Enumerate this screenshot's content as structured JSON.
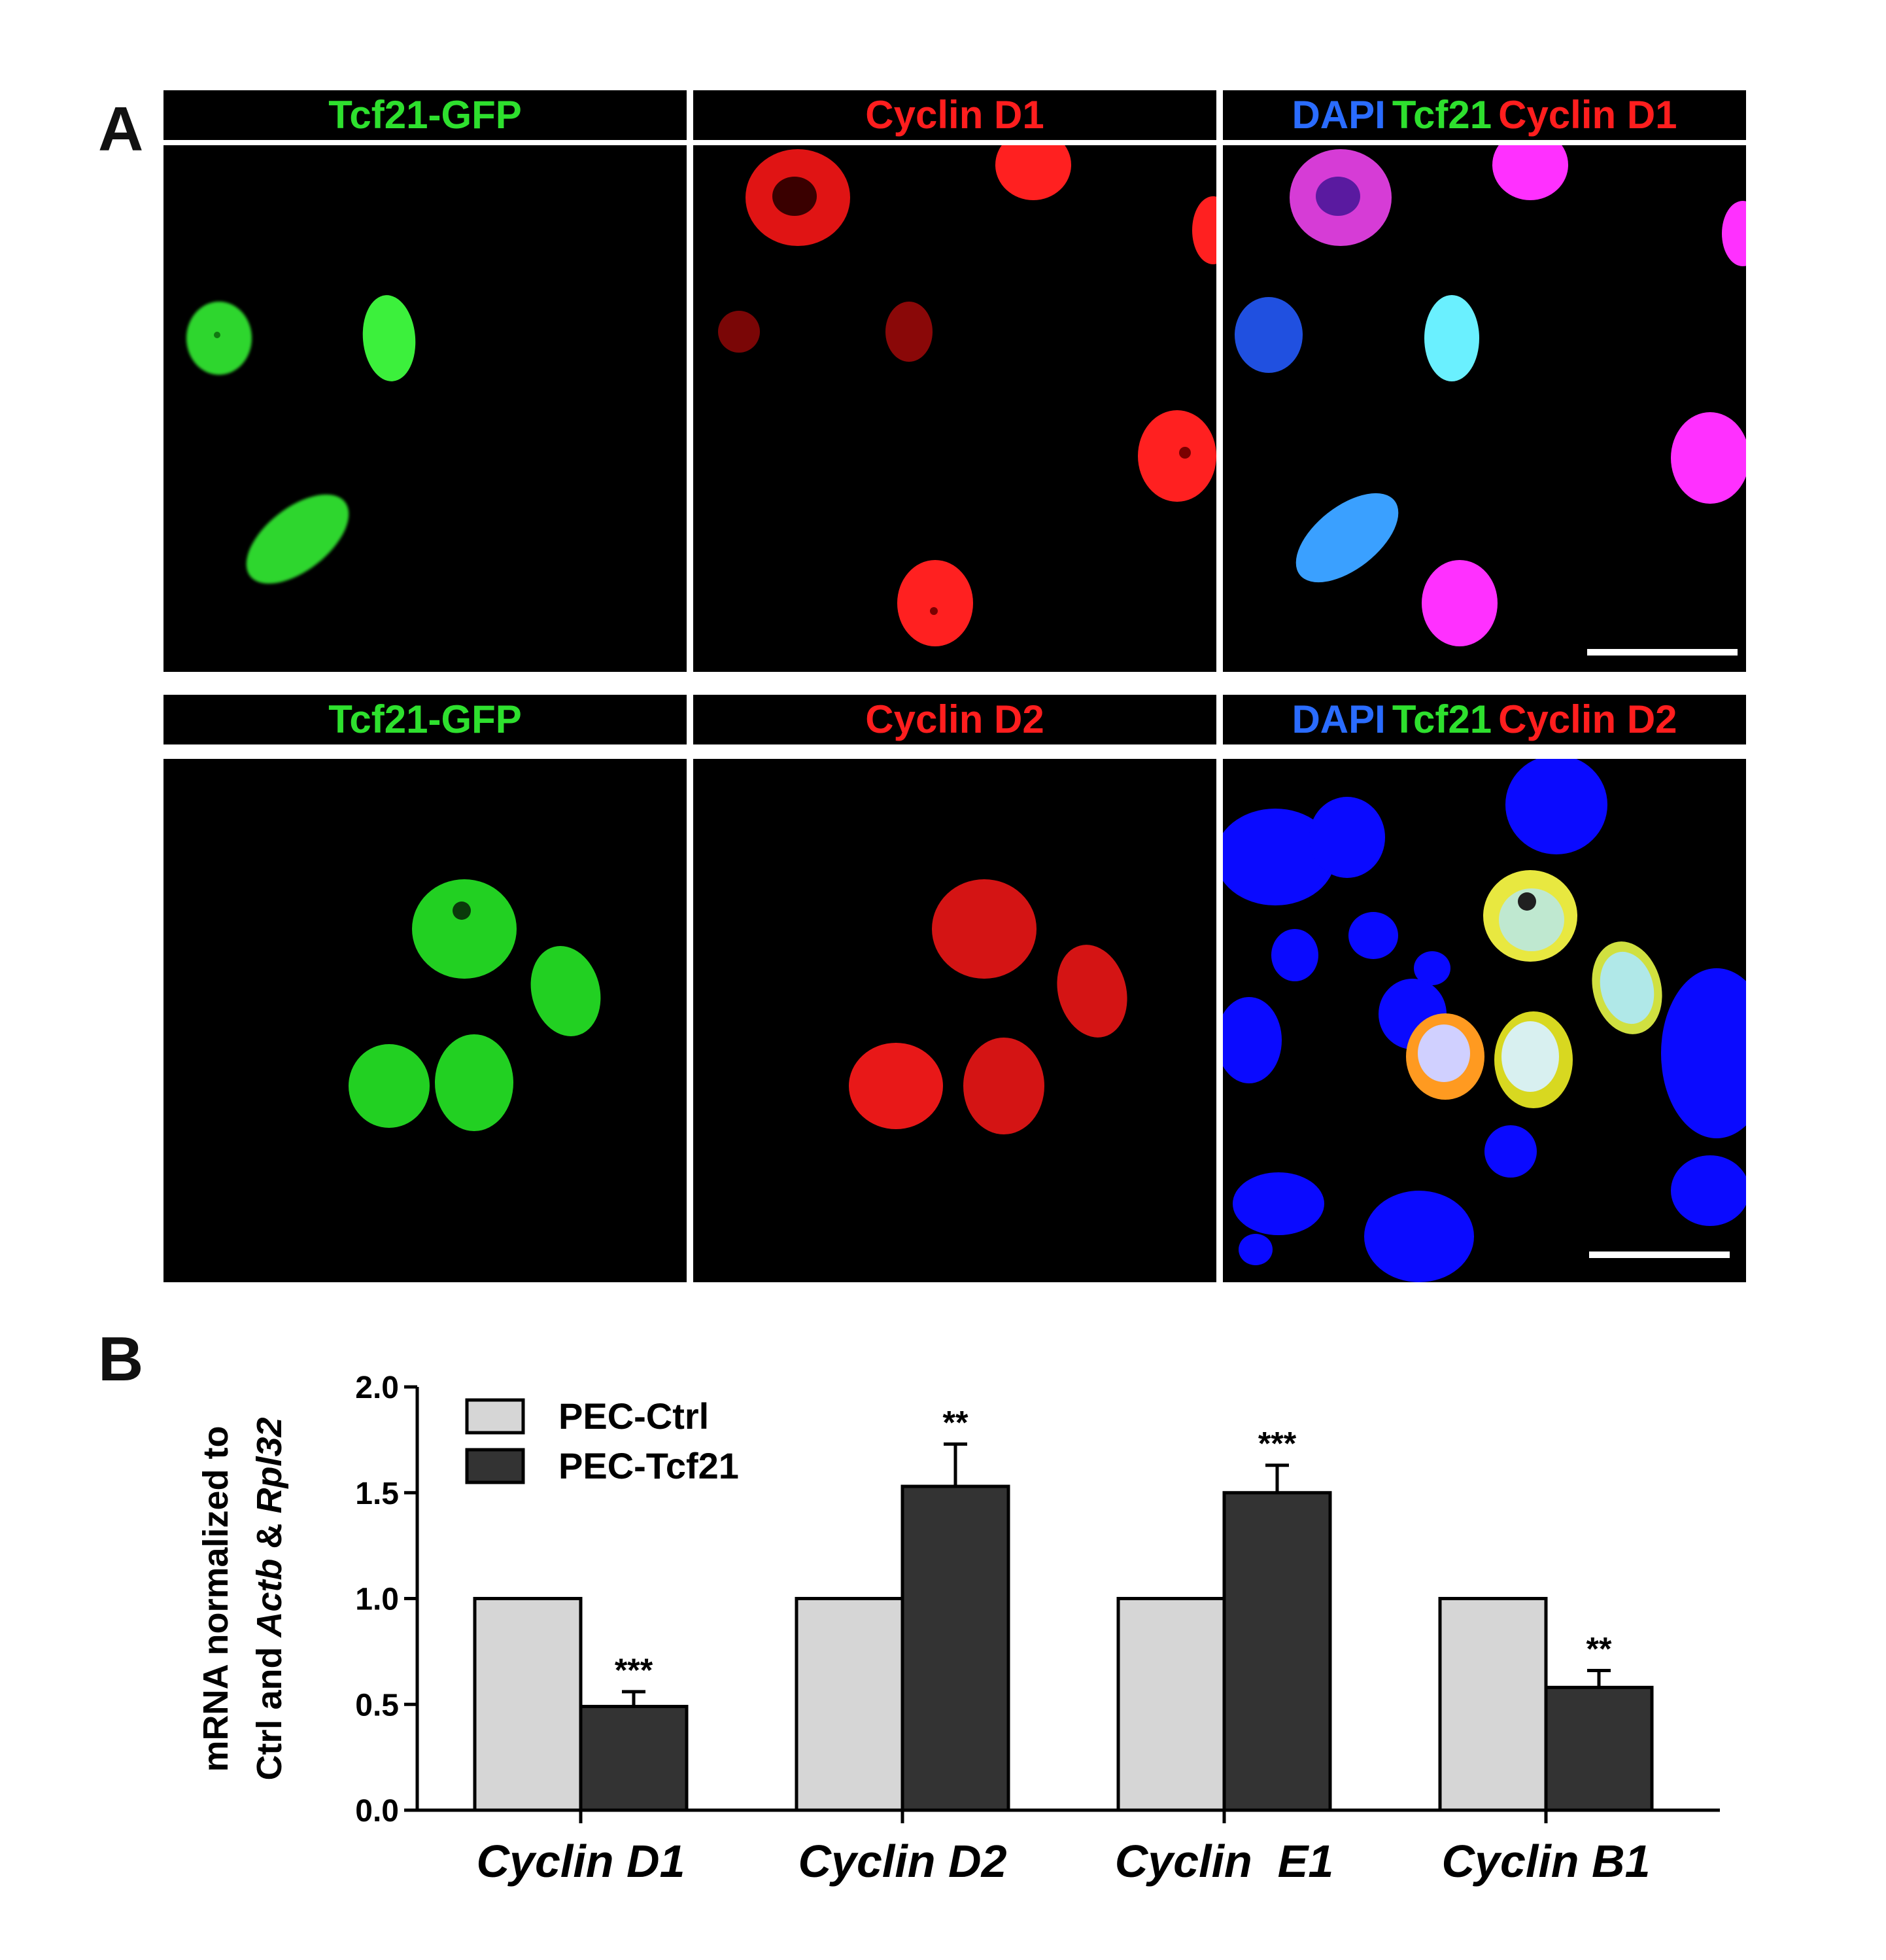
{
  "panels": {
    "a_label": "A",
    "b_label": "B"
  },
  "microscopy": {
    "row1": [
      {
        "parts": [
          {
            "text": "Tcf21-GFP",
            "color": "#2ee02e"
          }
        ]
      },
      {
        "parts": [
          {
            "text": "Cyclin D1",
            "color": "#ff1e1e"
          }
        ]
      },
      {
        "parts": [
          {
            "text": "DAPI",
            "color": "#2a6cff"
          },
          {
            "text": "Tcf21",
            "color": "#2ee02e"
          },
          {
            "text": "Cyclin D1",
            "color": "#ff1e1e"
          }
        ]
      }
    ],
    "row2": [
      {
        "parts": [
          {
            "text": "Tcf21-GFP",
            "color": "#2ee02e"
          }
        ]
      },
      {
        "parts": [
          {
            "text": "Cyclin D2",
            "color": "#ff1e1e"
          }
        ]
      },
      {
        "parts": [
          {
            "text": "DAPI",
            "color": "#2a6cff"
          },
          {
            "text": "Tcf21",
            "color": "#2ee02e"
          },
          {
            "text": "Cyclin D2",
            "color": "#ff1e1e"
          }
        ]
      }
    ]
  },
  "chart_data": {
    "type": "bar",
    "categories": [
      "Cyclin D1",
      "Cyclin D2",
      "Cyclin  E1",
      "Cyclin B1"
    ],
    "series": [
      {
        "name": "PEC-Ctrl",
        "color": "#d6d6d6",
        "values": [
          1.0,
          1.0,
          1.0,
          1.0
        ],
        "errors": [
          0,
          0,
          0,
          0
        ]
      },
      {
        "name": "PEC-Tcf21",
        "color": "#333333",
        "values": [
          0.49,
          1.53,
          1.5,
          0.58
        ],
        "errors": [
          0.07,
          0.2,
          0.13,
          0.08
        ]
      }
    ],
    "significance": [
      "***",
      "**",
      "***",
      "**"
    ],
    "ylabel_line1": "mRNA normalized to",
    "ylabel_line2_parts": [
      {
        "text": "Ctrl and ",
        "italic": false
      },
      {
        "text": "Actb",
        "italic": true
      },
      {
        "text": " & ",
        "italic": false
      },
      {
        "text": "Rpl32",
        "italic": true
      }
    ],
    "ylim": [
      0,
      2.0
    ],
    "yticks": [
      "0.0",
      "0.5",
      "1.0",
      "1.5",
      "2.0"
    ],
    "legend_position": "top-left"
  }
}
